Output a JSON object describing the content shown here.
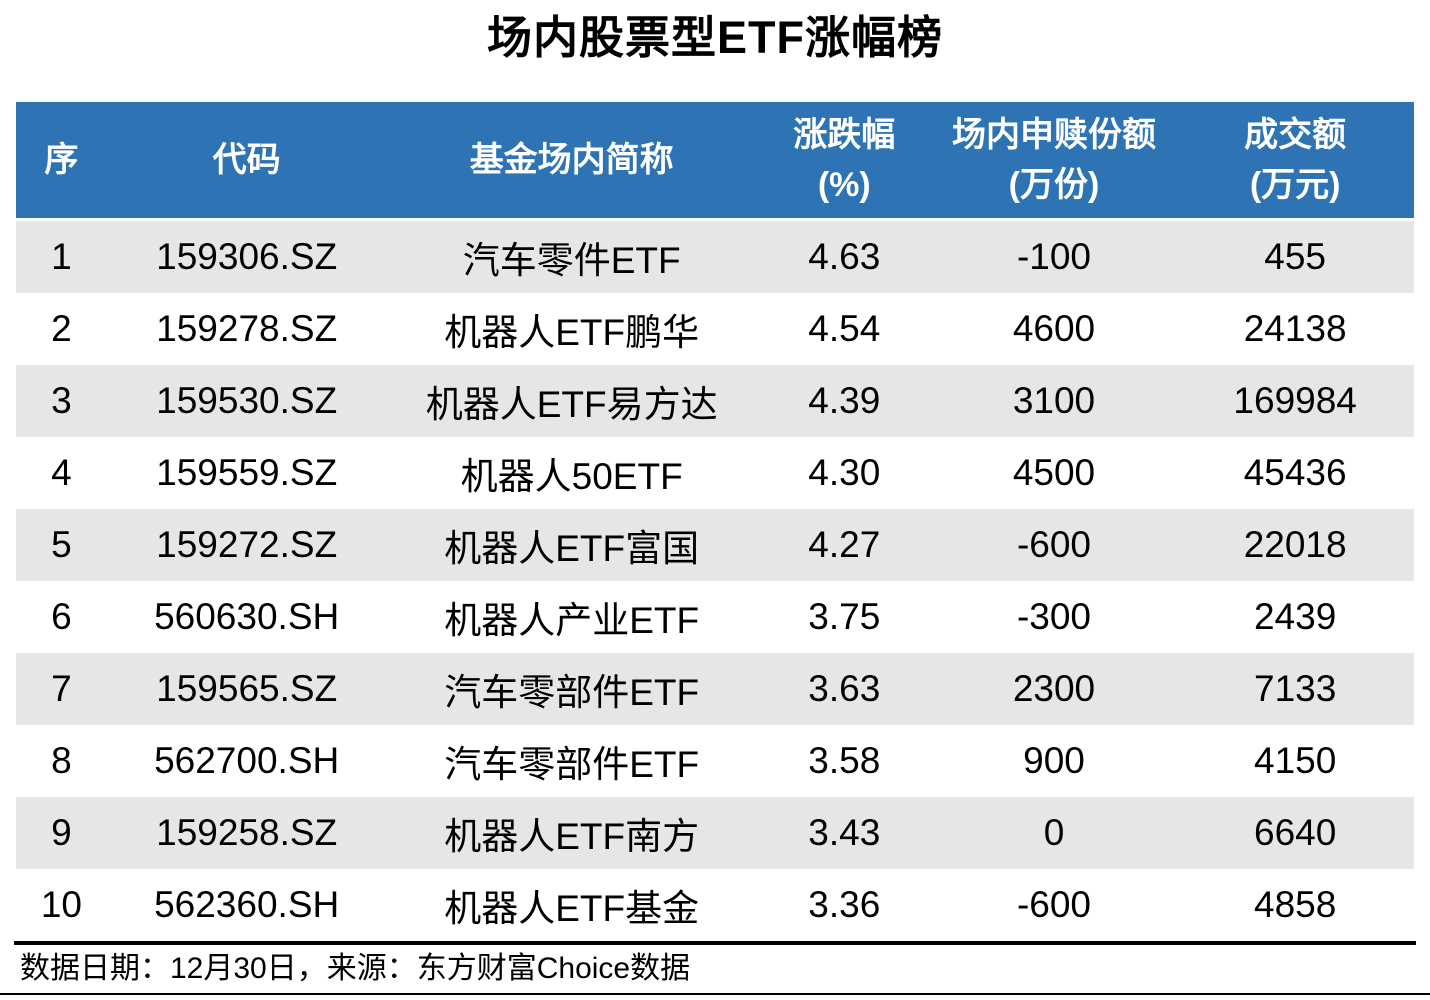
{
  "title": "场内股票型ETF涨幅榜",
  "colors": {
    "header_bg": "#2E74B5",
    "header_text": "#FFFFFF",
    "row_alt_bg": "#E6E6E6",
    "row_bg": "#FFFFFF",
    "body_text": "#000000",
    "rule": "#000000"
  },
  "header": {
    "col_rank": "序",
    "col_code": "代码",
    "col_name": "基金场内简称",
    "col_change_l1": "涨跌幅",
    "col_change_l2": "(%)",
    "col_shares_l1": "场内申赎份额",
    "col_shares_l2": "(万份)",
    "col_turnover_l1": "成交额",
    "col_turnover_l2": "(万元)"
  },
  "rows": [
    {
      "rank": "1",
      "code": "159306.SZ",
      "name": "汽车零件ETF",
      "change": "4.63",
      "shares": "-100",
      "turnover": "455"
    },
    {
      "rank": "2",
      "code": "159278.SZ",
      "name": "机器人ETF鹏华",
      "change": "4.54",
      "shares": "4600",
      "turnover": "24138"
    },
    {
      "rank": "3",
      "code": "159530.SZ",
      "name": "机器人ETF易方达",
      "change": "4.39",
      "shares": "3100",
      "turnover": "169984"
    },
    {
      "rank": "4",
      "code": "159559.SZ",
      "name": "机器人50ETF",
      "change": "4.30",
      "shares": "4500",
      "turnover": "45436"
    },
    {
      "rank": "5",
      "code": "159272.SZ",
      "name": "机器人ETF富国",
      "change": "4.27",
      "shares": "-600",
      "turnover": "22018"
    },
    {
      "rank": "6",
      "code": "560630.SH",
      "name": "机器人产业ETF",
      "change": "3.75",
      "shares": "-300",
      "turnover": "2439"
    },
    {
      "rank": "7",
      "code": "159565.SZ",
      "name": "汽车零部件ETF",
      "change": "3.63",
      "shares": "2300",
      "turnover": "7133"
    },
    {
      "rank": "8",
      "code": "562700.SH",
      "name": "汽车零部件ETF",
      "change": "3.58",
      "shares": "900",
      "turnover": "4150"
    },
    {
      "rank": "9",
      "code": "159258.SZ",
      "name": "机器人ETF南方",
      "change": "3.43",
      "shares": "0",
      "turnover": "6640"
    },
    {
      "rank": "10",
      "code": "562360.SH",
      "name": "机器人ETF基金",
      "change": "3.36",
      "shares": "-600",
      "turnover": "4858"
    }
  ],
  "footer": {
    "text": "数据日期：12月30日，来源：东方财富Choice数据"
  },
  "chart_data": {
    "type": "table",
    "title": "场内股票型ETF涨幅榜",
    "columns": [
      "序",
      "代码",
      "基金场内简称",
      "涨跌幅(%)",
      "场内申赎份额(万份)",
      "成交额(万元)"
    ],
    "rows": [
      [
        1,
        "159306.SZ",
        "汽车零件ETF",
        4.63,
        -100,
        455
      ],
      [
        2,
        "159278.SZ",
        "机器人ETF鹏华",
        4.54,
        4600,
        24138
      ],
      [
        3,
        "159530.SZ",
        "机器人ETF易方达",
        4.39,
        3100,
        169984
      ],
      [
        4,
        "159559.SZ",
        "机器人50ETF",
        4.3,
        4500,
        45436
      ],
      [
        5,
        "159272.SZ",
        "机器人ETF富国",
        4.27,
        -600,
        22018
      ],
      [
        6,
        "560630.SH",
        "机器人产业ETF",
        3.75,
        -300,
        2439
      ],
      [
        7,
        "159565.SZ",
        "汽车零部件ETF",
        3.63,
        2300,
        7133
      ],
      [
        8,
        "562700.SH",
        "汽车零部件ETF",
        3.58,
        900,
        4150
      ],
      [
        9,
        "159258.SZ",
        "机器人ETF南方",
        3.43,
        0,
        6640
      ],
      [
        10,
        "562360.SH",
        "机器人ETF基金",
        3.36,
        -600,
        4858
      ]
    ],
    "source_note": "数据日期：12月30日，来源：东方财富Choice数据",
    "layout": {
      "header_style": "blue band, white bold text, two-line units",
      "row_striping": "odd rows #E6E6E6, even rows white",
      "alignment": "all cells centered"
    }
  }
}
